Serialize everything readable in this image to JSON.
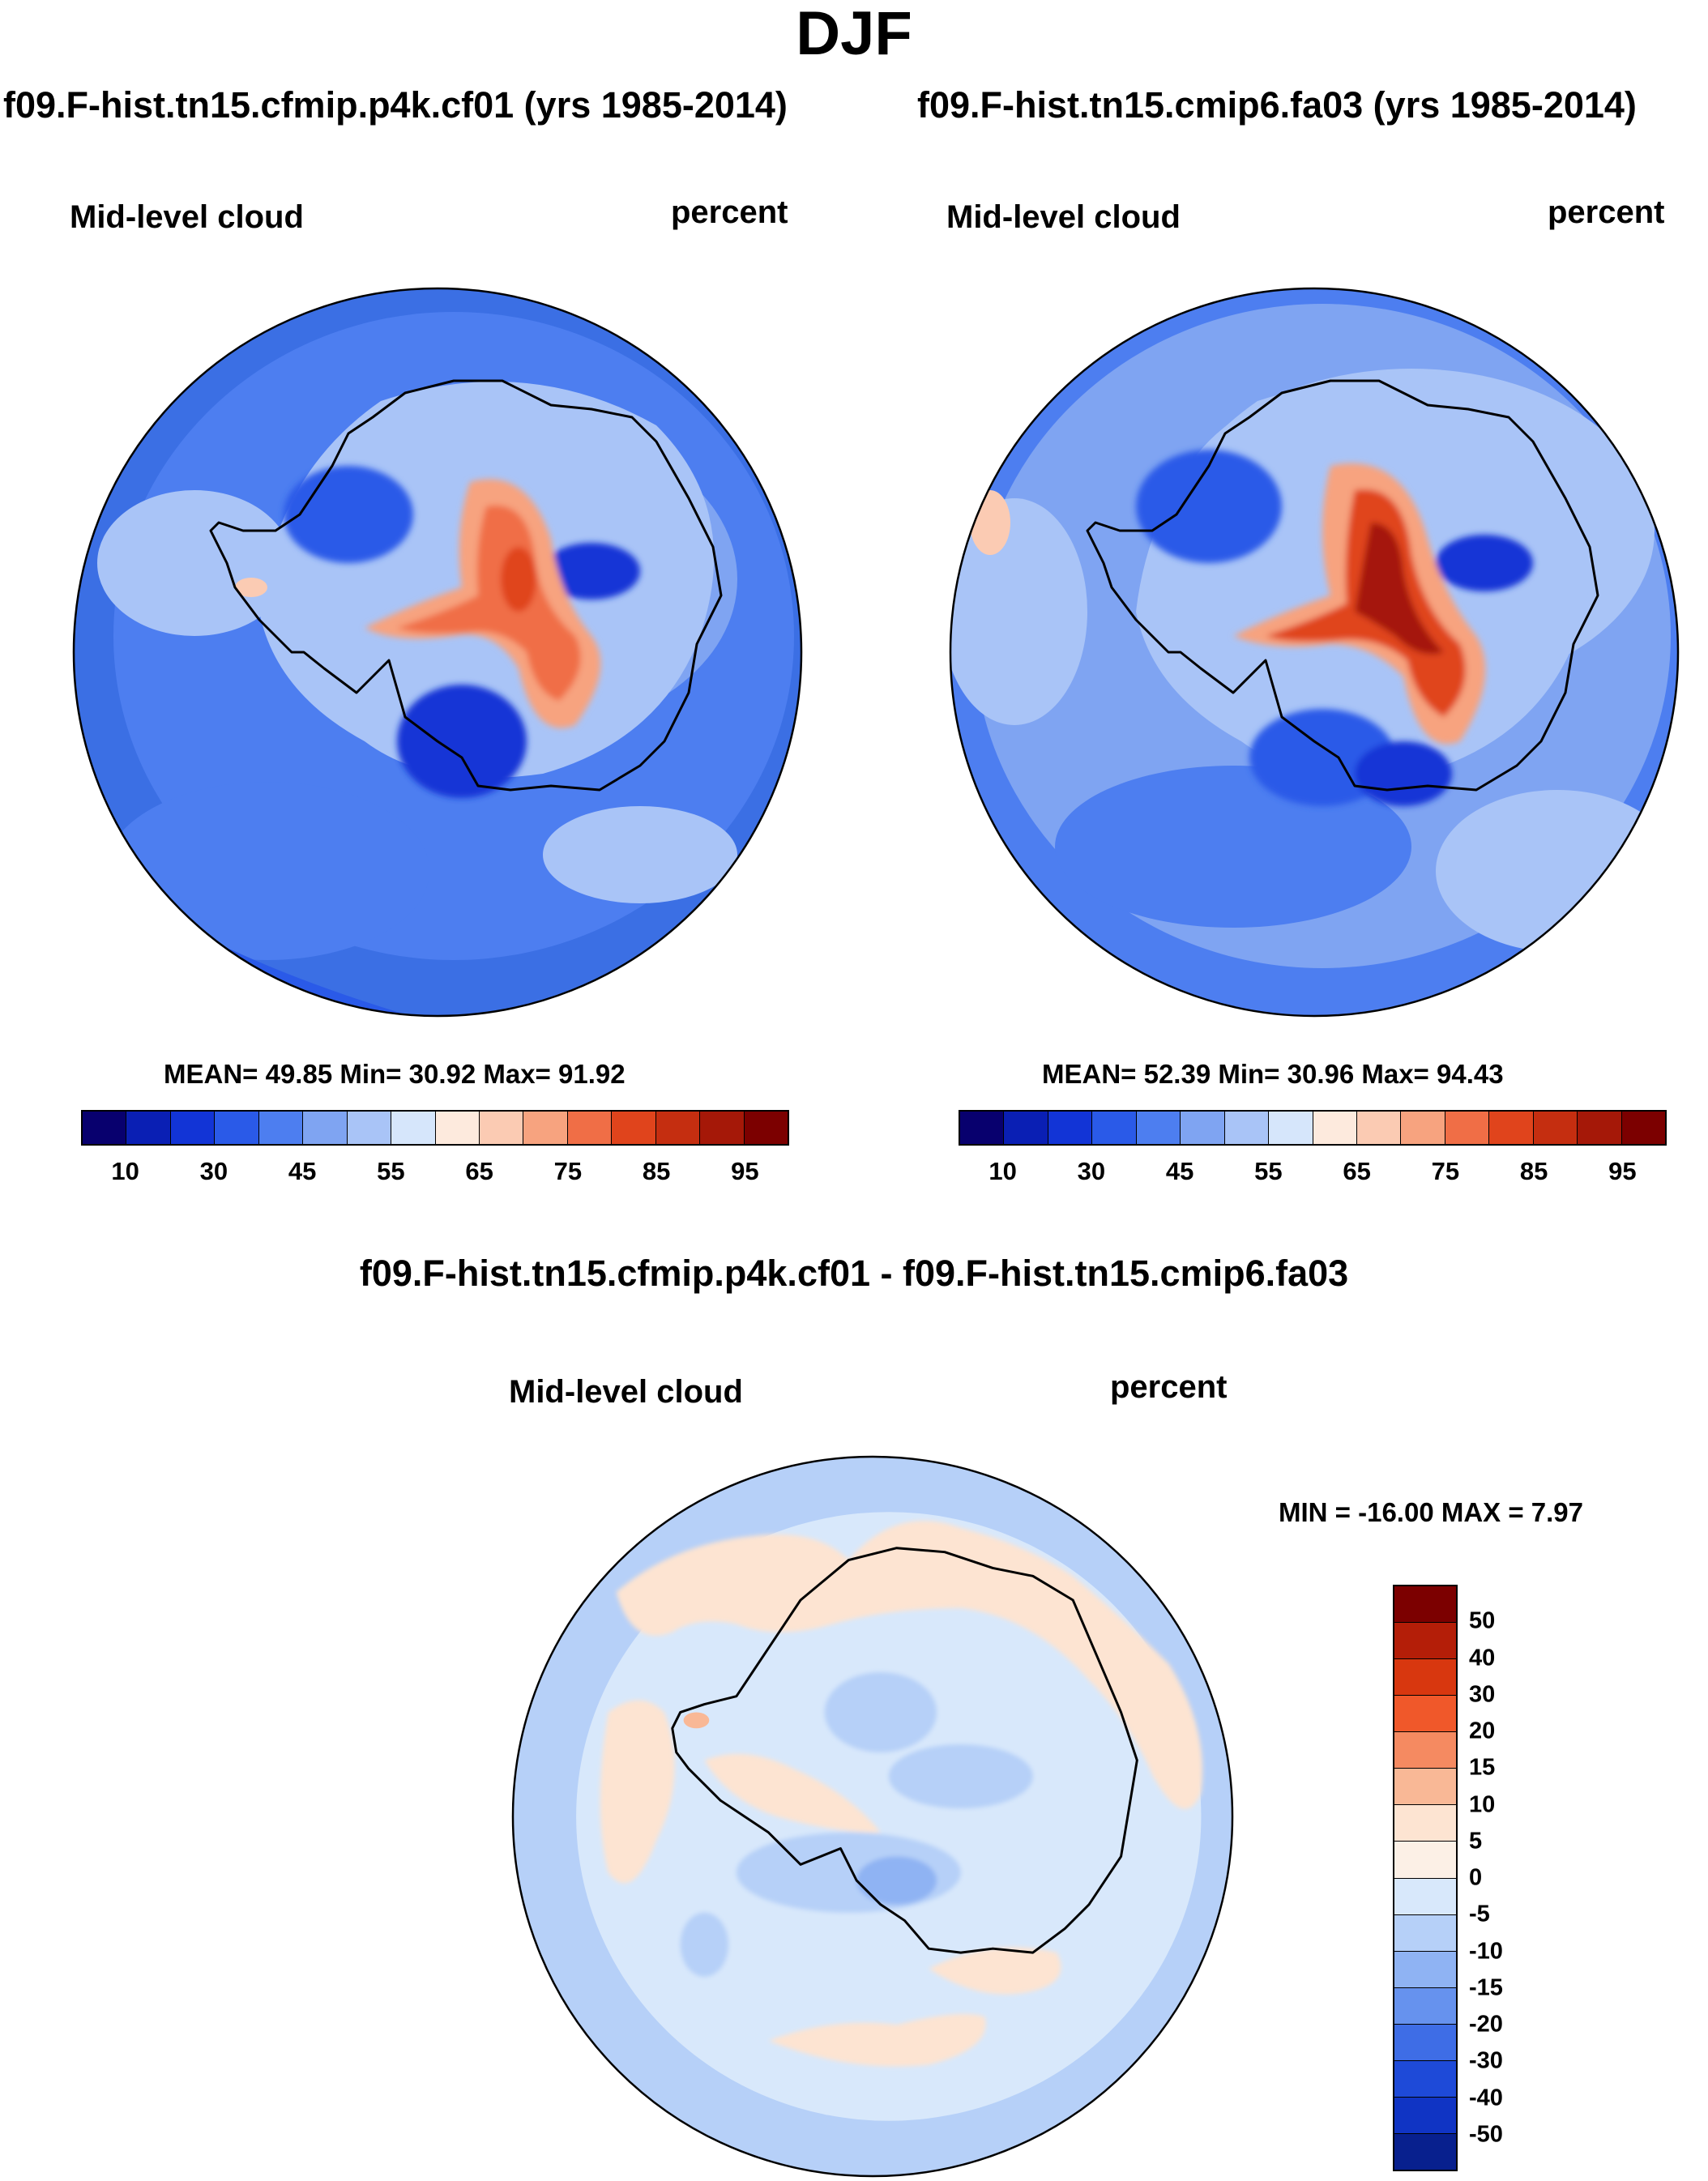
{
  "figure": {
    "title": "DJF",
    "left_panel": {
      "case_title": "f09.F-hist.tn15.cfmip.p4k.cf01 (yrs 1985-2014)",
      "variable": "Mid-level cloud",
      "units": "percent",
      "stats": {
        "mean": "49.85",
        "min": "30.92",
        "max": "91.92"
      },
      "stats_text": "MEAN=  49.85   Min=  30.92   Max=  91.92"
    },
    "right_panel": {
      "case_title": "f09.F-hist.tn15.cmip6.fa03 (yrs 1985-2014)",
      "variable": "Mid-level cloud",
      "units": "percent",
      "stats": {
        "mean": "52.39",
        "min": "30.96",
        "max": "94.43"
      },
      "stats_text": "MEAN=  52.39   Min=  30.96   Max=  94.43"
    },
    "diff_panel": {
      "title": "f09.F-hist.tn15.cfmip.p4k.cf01 - f09.F-hist.tn15.cmip6.fa03",
      "variable": "Mid-level cloud",
      "units": "percent",
      "minmax_text": "MIN = -16.00 MAX =   7.97"
    }
  },
  "chart_data": [
    {
      "type": "map",
      "projection": "south polar stereographic",
      "title": "f09.F-hist.tn15.cfmip.p4k.cf01 (yrs 1985-2014)",
      "variable": "Mid-level cloud",
      "units": "percent",
      "mean": 49.85,
      "min": 30.92,
      "max": 91.92,
      "colorbar": {
        "levels": [
          10,
          20,
          30,
          40,
          45,
          50,
          55,
          60,
          65,
          70,
          75,
          80,
          85,
          90,
          95
        ],
        "tick_labels": [
          "10",
          "30",
          "45",
          "55",
          "65",
          "75",
          "85",
          "95"
        ],
        "colors": [
          "#08006e",
          "#0a1fb4",
          "#1234d6",
          "#2a5ae8",
          "#4d7ef0",
          "#7fa4f2",
          "#a9c4f7",
          "#d6e6fb",
          "#fdeadd",
          "#fbcbb3",
          "#f7a37f",
          "#f06e46",
          "#e0441c",
          "#c52e10",
          "#a51808",
          "#7c0000"
        ]
      }
    },
    {
      "type": "map",
      "projection": "south polar stereographic",
      "title": "f09.F-hist.tn15.cmip6.fa03 (yrs 1985-2014)",
      "variable": "Mid-level cloud",
      "units": "percent",
      "mean": 52.39,
      "min": 30.96,
      "max": 94.43,
      "colorbar": {
        "levels": [
          10,
          20,
          30,
          40,
          45,
          50,
          55,
          60,
          65,
          70,
          75,
          80,
          85,
          90,
          95
        ],
        "tick_labels": [
          "10",
          "30",
          "45",
          "55",
          "65",
          "75",
          "85",
          "95"
        ],
        "colors": [
          "#08006e",
          "#0a1fb4",
          "#1234d6",
          "#2a5ae8",
          "#4d7ef0",
          "#7fa4f2",
          "#a9c4f7",
          "#d6e6fb",
          "#fdeadd",
          "#fbcbb3",
          "#f7a37f",
          "#f06e46",
          "#e0441c",
          "#c52e10",
          "#a51808",
          "#7c0000"
        ]
      }
    },
    {
      "type": "map",
      "projection": "south polar stereographic",
      "title": "f09.F-hist.tn15.cfmip.p4k.cf01 - f09.F-hist.tn15.cmip6.fa03",
      "variable": "Mid-level cloud",
      "units": "percent",
      "min": -16.0,
      "max": 7.97,
      "colorbar": {
        "orientation": "vertical",
        "levels": [
          50,
          40,
          30,
          20,
          15,
          10,
          5,
          0,
          -5,
          -10,
          -15,
          -20,
          -30,
          -40,
          -50
        ],
        "tick_labels": [
          "50",
          "40",
          "30",
          "20",
          "15",
          "10",
          "5",
          "0",
          "-5",
          "-10",
          "-15",
          "-20",
          "-30",
          "-40",
          "-50"
        ],
        "colors": [
          "#7c0000",
          "#b41e08",
          "#d8370f",
          "#f0582a",
          "#f58a61",
          "#f9b896",
          "#fde4d2",
          "#fcf0e6",
          "#d8e8fb",
          "#b6d0f8",
          "#8fb3f3",
          "#6692ee",
          "#3e6de6",
          "#1e4ad8",
          "#1034c4",
          "#08208e"
        ]
      }
    }
  ]
}
